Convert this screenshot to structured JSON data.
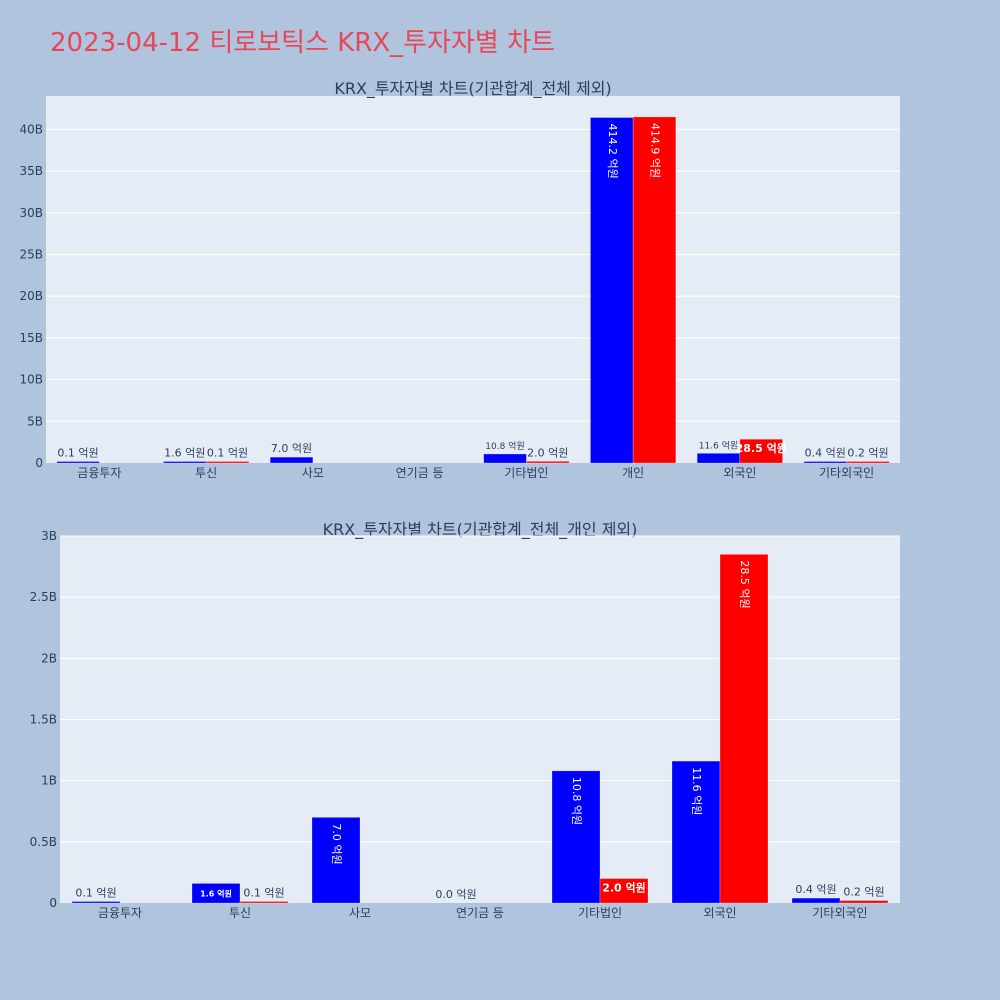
{
  "page_title": "2023-04-12 티로보틱스 KRX_투자자별 차트",
  "colors": {
    "background": "#b0c4de",
    "plot_bg": "#e5ecf6",
    "title": "#e8475b",
    "buy": "#0000ff",
    "sell": "#ff0000",
    "text": "#2a3f5f"
  },
  "chart_data": [
    {
      "type": "bar",
      "title": "KRX_투자자별 차트(기관합계_전체 제외)",
      "categories": [
        "금융투자",
        "투신",
        "사모",
        "연기금 등",
        "기타법인",
        "개인",
        "외국인",
        "기타외국인"
      ],
      "ylim": [
        0,
        44000000000
      ],
      "yticks": [
        0,
        5000000000,
        10000000000,
        15000000000,
        20000000000,
        25000000000,
        30000000000,
        35000000000,
        40000000000
      ],
      "ytick_labels": [
        "0",
        "5B",
        "10B",
        "15B",
        "20B",
        "25B",
        "30B",
        "35B",
        "40B"
      ],
      "series": [
        {
          "color": "#0000ff",
          "values": [
            10000000,
            160000000,
            700000000,
            0,
            1080000000,
            41420000000,
            1160000000,
            40000000
          ],
          "labels": [
            "0.1 억원",
            "1.6 억원",
            "7.0 억원",
            "",
            "10.8 억원",
            "414.2 억원",
            "11.6 억원",
            "0.4 억원"
          ]
        },
        {
          "color": "#ff0000",
          "values": [
            0,
            10000000,
            0,
            0,
            200000000,
            41490000000,
            2850000000,
            20000000
          ],
          "labels": [
            "",
            "0.1 억원",
            "",
            "",
            "2.0 억원",
            "414.9 억원",
            "28.5 억원",
            "0.2 억원"
          ]
        }
      ],
      "grid": true
    },
    {
      "type": "bar",
      "title": "KRX_투자자별 차트(기관합계_전체_개인 제외)",
      "categories": [
        "금융투자",
        "투신",
        "사모",
        "연기금 등",
        "기타법인",
        "외국인",
        "기타외국인"
      ],
      "ylim": [
        0,
        3000000000
      ],
      "yticks": [
        0,
        500000000,
        1000000000,
        1500000000,
        2000000000,
        2500000000,
        3000000000
      ],
      "ytick_labels": [
        "0",
        "0.5B",
        "1B",
        "1.5B",
        "2B",
        "2.5B",
        "3B"
      ],
      "series": [
        {
          "color": "#0000ff",
          "values": [
            10000000,
            160000000,
            700000000,
            0,
            1080000000,
            1160000000,
            40000000
          ],
          "labels": [
            "0.1 억원",
            "1.6 억원",
            "7.0 억원",
            "0.0 억원",
            "10.8 억원",
            "11.6 억원",
            "0.4 억원"
          ]
        },
        {
          "color": "#ff0000",
          "values": [
            0,
            10000000,
            0,
            0,
            200000000,
            2850000000,
            20000000
          ],
          "labels": [
            "",
            "0.1 억원",
            "",
            "",
            "2.0 억원",
            "28.5 억원",
            "0.2 억원"
          ]
        }
      ],
      "grid": true
    }
  ]
}
